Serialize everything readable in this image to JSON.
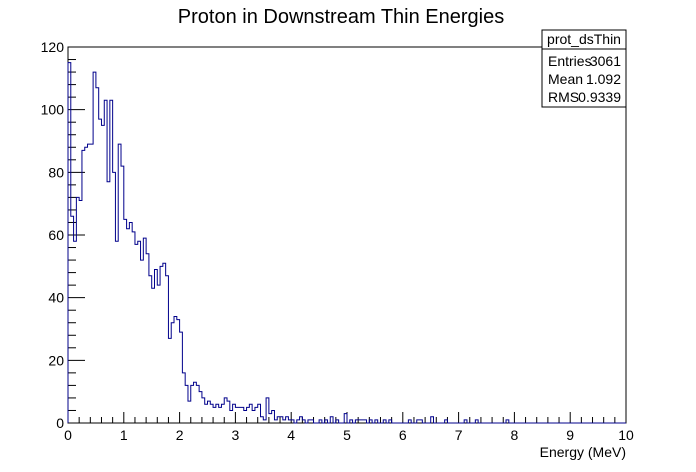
{
  "chart_data": {
    "type": "histogram",
    "title": "Proton in Downstream Thin Energies",
    "xlabel": "Energy (MeV)",
    "ylabel": "",
    "xlim": [
      0,
      10
    ],
    "ylim": [
      0,
      120
    ],
    "x_ticks": [
      "0",
      "1",
      "2",
      "3",
      "4",
      "5",
      "6",
      "7",
      "8",
      "9",
      "10"
    ],
    "y_ticks": [
      "0",
      "20",
      "40",
      "60",
      "80",
      "100",
      "120"
    ],
    "bin_width": 0.05,
    "series_color": "#00008b",
    "grid": false,
    "stats_box": {
      "position": "top-right",
      "name": "prot_dsThin",
      "rows": [
        {
          "label": "Entries",
          "value": "3061"
        },
        {
          "label": "Mean",
          "value": "1.092"
        },
        {
          "label": "RMS",
          "value": "0.9339"
        }
      ]
    },
    "values": [
      115,
      66,
      58,
      72,
      71,
      87,
      88,
      89,
      89,
      112,
      107,
      97,
      95,
      103,
      77,
      103,
      80,
      58,
      89,
      82,
      65,
      62,
      64,
      61,
      57,
      58,
      52,
      59,
      54,
      47,
      43,
      49,
      44,
      50,
      51,
      47,
      27,
      32,
      34,
      33,
      29,
      16,
      12,
      7,
      12,
      13,
      12,
      10,
      8,
      6,
      7,
      6,
      5,
      6,
      5,
      6,
      8,
      7,
      4,
      6,
      5,
      5,
      5,
      4,
      5,
      6,
      4,
      5,
      6,
      2,
      1,
      8,
      3,
      4,
      1,
      2,
      2,
      1,
      2,
      1,
      1,
      0,
      1,
      2,
      1,
      0,
      1,
      1,
      0,
      0,
      1,
      0,
      1,
      0,
      2,
      0,
      1,
      0,
      0,
      3,
      0,
      1,
      0,
      1,
      1,
      1,
      1,
      0,
      1,
      0,
      1,
      0,
      0,
      1,
      0,
      1,
      0,
      0,
      0,
      0,
      0,
      0,
      1,
      0,
      0,
      1,
      1,
      0,
      0,
      0,
      2,
      0,
      0,
      0,
      0,
      1,
      0,
      0,
      0,
      0,
      0,
      0,
      1,
      0,
      0,
      0,
      1,
      0,
      0,
      0,
      0,
      0,
      0,
      0,
      0,
      0,
      0,
      1,
      0,
      0,
      0,
      0,
      0,
      0,
      0,
      0,
      0,
      0,
      0,
      0,
      0,
      0,
      0,
      0,
      0,
      0,
      0,
      0,
      0,
      0,
      0,
      0,
      0,
      0,
      0,
      0,
      0,
      0,
      0,
      0,
      0,
      0,
      0,
      0,
      0,
      0,
      0,
      0,
      0,
      0
    ]
  }
}
